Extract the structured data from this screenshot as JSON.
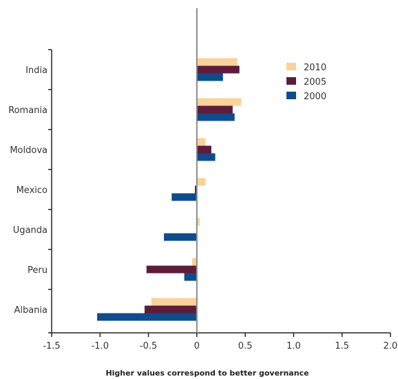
{
  "chart_data": {
    "type": "bar",
    "orientation": "horizontal",
    "categories": [
      "India",
      "Romania",
      "Moldova",
      "Mexico",
      "Uganda",
      "Peru",
      "Albania"
    ],
    "series": [
      {
        "name": "2010",
        "color": "#FAD29B",
        "values": [
          0.42,
          0.46,
          0.09,
          0.09,
          0.03,
          -0.05,
          -0.47
        ]
      },
      {
        "name": "2005",
        "color": "#5E1C3C",
        "values": [
          0.44,
          0.37,
          0.15,
          -0.02,
          0.0,
          -0.52,
          -0.54
        ]
      },
      {
        "name": "2000",
        "color": "#0E4C8C",
        "values": [
          0.27,
          0.39,
          0.19,
          -0.26,
          -0.34,
          -0.13,
          -1.03
        ]
      }
    ],
    "xlim": [
      -1.5,
      2.0
    ],
    "xticks": [
      -1.5,
      -1.0,
      -0.5,
      0,
      0.5,
      1.0,
      1.5,
      2.0
    ],
    "xtick_labels": [
      "-1.5",
      "-1.0",
      "-0.5",
      "0",
      "0.5",
      "1.0",
      "1.5",
      "2.0"
    ],
    "xlabel": "Higher values correspond to better governance",
    "title": "",
    "grid": false,
    "legend_position": "top-right"
  }
}
